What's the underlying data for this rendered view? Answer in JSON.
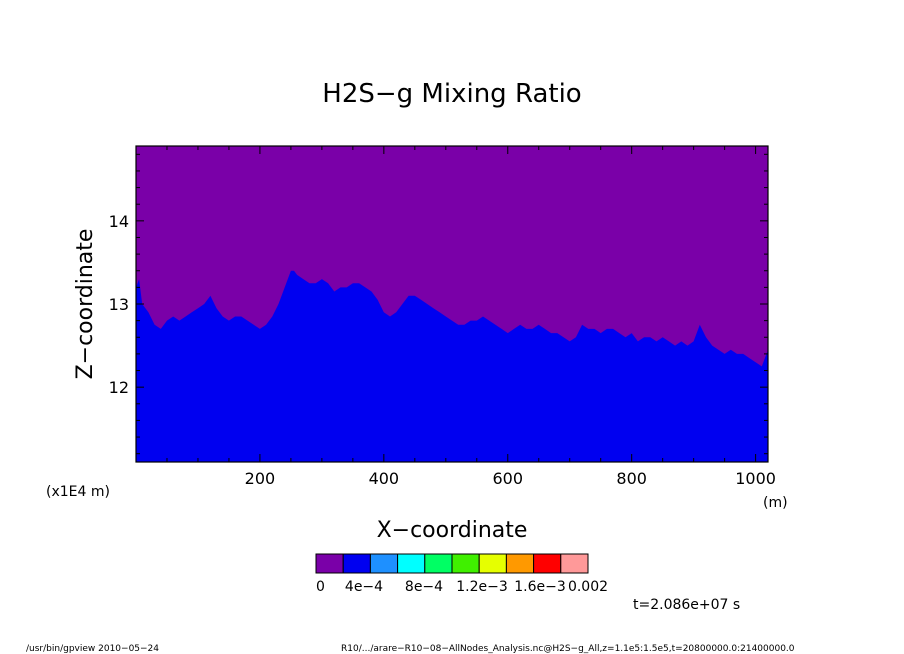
{
  "chart_data": {
    "type": "area",
    "title": "H2S−g Mixing Ratio",
    "xlabel": "X−coordinate",
    "ylabel": "Z−coordinate",
    "x_unit": "(m)",
    "y_unit": "(x1E4 m)",
    "xlim": [
      0,
      1020
    ],
    "ylim": [
      11.1,
      14.9
    ],
    "x_ticks": [
      200,
      400,
      600,
      800,
      1000
    ],
    "y_ticks": [
      12,
      13,
      14
    ],
    "x_tick_labels": [
      "200",
      "400",
      "600",
      "800",
      "1000"
    ],
    "y_tick_labels": [
      "12",
      "13",
      "14"
    ],
    "grid": false,
    "background_color": "#7a00a8",
    "fill_color": "#0000f0",
    "series": [
      {
        "x": [
          0,
          5,
          10,
          20,
          30,
          40,
          50,
          60,
          70,
          80,
          90,
          100,
          110,
          120,
          130,
          140,
          150,
          160,
          170,
          180,
          190,
          200,
          210,
          220,
          230,
          240,
          250,
          255,
          260,
          270,
          280,
          290,
          300,
          310,
          320,
          330,
          340,
          350,
          360,
          370,
          380,
          390,
          400,
          410,
          420,
          430,
          440,
          450,
          460,
          470,
          480,
          490,
          500,
          510,
          520,
          530,
          540,
          550,
          560,
          570,
          580,
          590,
          600,
          610,
          620,
          630,
          640,
          650,
          660,
          670,
          680,
          690,
          700,
          710,
          720,
          730,
          740,
          750,
          760,
          770,
          780,
          790,
          800,
          810,
          820,
          830,
          840,
          850,
          860,
          870,
          880,
          890,
          900,
          910,
          920,
          930,
          940,
          950,
          960,
          970,
          980,
          990,
          1000,
          1010,
          1020
        ],
        "values": [
          13.2,
          13.3,
          13.0,
          12.9,
          12.75,
          12.7,
          12.8,
          12.85,
          12.8,
          12.85,
          12.9,
          12.95,
          13.0,
          13.1,
          12.95,
          12.85,
          12.8,
          12.85,
          12.85,
          12.8,
          12.75,
          12.7,
          12.75,
          12.85,
          13.0,
          13.2,
          13.4,
          13.4,
          13.35,
          13.3,
          13.25,
          13.25,
          13.3,
          13.25,
          13.15,
          13.2,
          13.2,
          13.25,
          13.25,
          13.2,
          13.15,
          13.05,
          12.9,
          12.85,
          12.9,
          13.0,
          13.1,
          13.1,
          13.05,
          13.0,
          12.95,
          12.9,
          12.85,
          12.8,
          12.75,
          12.75,
          12.8,
          12.8,
          12.85,
          12.8,
          12.75,
          12.7,
          12.65,
          12.7,
          12.75,
          12.7,
          12.7,
          12.75,
          12.7,
          12.65,
          12.65,
          12.6,
          12.55,
          12.6,
          12.75,
          12.7,
          12.7,
          12.65,
          12.7,
          12.7,
          12.65,
          12.6,
          12.65,
          12.55,
          12.6,
          12.6,
          12.55,
          12.6,
          12.55,
          12.5,
          12.55,
          12.5,
          12.55,
          12.75,
          12.6,
          12.5,
          12.45,
          12.4,
          12.45,
          12.4,
          12.4,
          12.35,
          12.3,
          12.25,
          12.45
        ]
      }
    ],
    "colorbar": {
      "colors": [
        "#7a00a8",
        "#0000f0",
        "#1e90ff",
        "#00ffff",
        "#00ff64",
        "#40f000",
        "#e6ff00",
        "#ff9900",
        "#ff0000",
        "#ff9999"
      ],
      "labels": [
        "0",
        "4e−4",
        "8e−4",
        "1.2e−3",
        "1.6e−3",
        "0.002"
      ]
    }
  },
  "time_label": "t=2.086e+07 s",
  "footer": {
    "left": "/usr/bin/gpview  2010−05−24",
    "right": "R10/.../arare−R10−08−AllNodes_Analysis.nc@H2S−g_All,z=1.1e5:1.5e5,t=20800000.0:21400000.0"
  }
}
